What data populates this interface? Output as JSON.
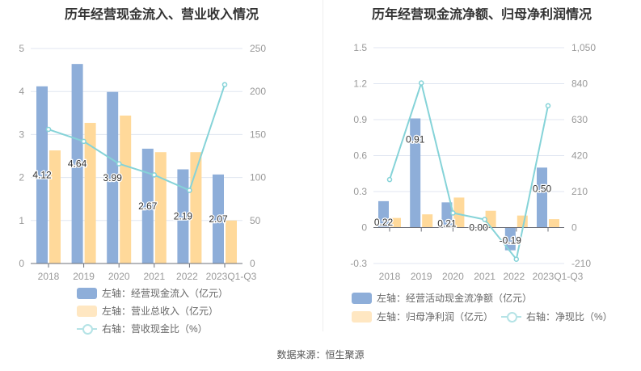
{
  "source": "数据来源：恒生聚源",
  "colors": {
    "bar1": "#8eaed9",
    "bar2": "#ffd99a",
    "line": "#85d3d8"
  },
  "chart_data": [
    {
      "type": "bar+line",
      "title": "历年经营现金流入、营业收入情况",
      "categories": [
        "2018",
        "2019",
        "2020",
        "2021",
        "2022",
        "2023Q1-Q3"
      ],
      "ylim_left": [
        0,
        5
      ],
      "yticks_left": [
        "0",
        "1",
        "2",
        "3",
        "4",
        "5"
      ],
      "ylim_right": [
        0,
        250
      ],
      "yticks_right": [
        "0",
        "50",
        "100",
        "150",
        "200",
        "250"
      ],
      "grid": true,
      "legend": "bottom",
      "series": [
        {
          "name": "左轴：经营现金流入（亿元）",
          "axis": "left",
          "kind": "bar",
          "values": [
            4.12,
            4.64,
            3.99,
            2.67,
            2.19,
            2.07
          ],
          "labels": [
            "4.12",
            "4.64",
            "3.99",
            "2.67",
            "2.19",
            "2.07"
          ]
        },
        {
          "name": "左轴：营业总收入（亿元）",
          "axis": "left",
          "kind": "bar",
          "values": [
            2.63,
            3.27,
            3.44,
            2.59,
            2.59,
            1.0
          ]
        },
        {
          "name": "右轴：营收现金比（%）",
          "axis": "right",
          "kind": "line",
          "values": [
            156,
            142,
            116,
            103,
            85,
            208
          ]
        }
      ]
    },
    {
      "type": "bar+line",
      "title": "历年经营现金流净额、归母净利润情况",
      "categories": [
        "2018",
        "2019",
        "2020",
        "2021",
        "2022",
        "2023Q1-Q3"
      ],
      "ylim_left": [
        -0.3,
        1.5
      ],
      "yticks_left": [
        "-0.3",
        "0",
        "0.3",
        "0.6",
        "0.9",
        "1.2",
        "1.5"
      ],
      "ylim_right": [
        -210,
        1050
      ],
      "yticks_right": [
        "-210",
        "0",
        "210",
        "420",
        "630",
        "840",
        "1,050"
      ],
      "grid": true,
      "legend": "bottom",
      "series": [
        {
          "name": "左轴：经营活动现金流净额（亿元）",
          "axis": "left",
          "kind": "bar",
          "values": [
            0.22,
            0.91,
            0.21,
            0.0,
            -0.19,
            0.5
          ],
          "labels": [
            "0.22",
            "0.91",
            "0.21",
            "0.00",
            "-0.19",
            "0.50"
          ]
        },
        {
          "name": "左轴：归母净利润（亿元）",
          "axis": "left",
          "kind": "bar",
          "values": [
            0.08,
            0.11,
            0.25,
            0.14,
            0.1,
            0.07
          ]
        },
        {
          "name": "右轴：净现比（%）",
          "axis": "right",
          "kind": "line",
          "values": [
            280,
            844,
            85,
            47,
            -185,
            711
          ]
        }
      ]
    }
  ]
}
